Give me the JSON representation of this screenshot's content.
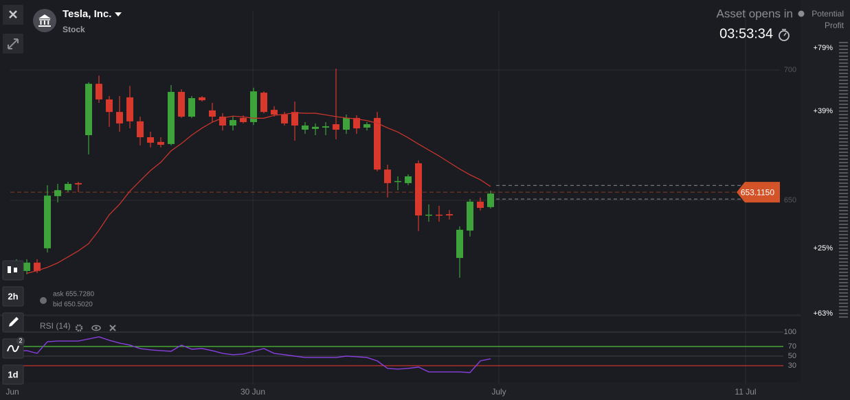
{
  "header": {
    "title": "Tesla, Inc.",
    "subtitle": "Stock"
  },
  "timer": {
    "label": "Asset opens in",
    "value": "03:53:34"
  },
  "profit": {
    "label": [
      "Potential",
      "Profit"
    ]
  },
  "toolbar": {
    "period": "2h",
    "indicator_count": "2",
    "timeframe": "1d"
  },
  "quote": {
    "ask": {
      "value": 655.728,
      "label": "ask 655.7280"
    },
    "bid": {
      "value": 650.502,
      "label": "bid 650.5020"
    }
  },
  "chart_data": {
    "type": "candlestick",
    "ylim": [
      606.3,
      722.9
    ],
    "yticks": [
      700,
      650
    ],
    "up_color": "#3da33a",
    "down_color": "#d8392c",
    "ma_color": "#c8342c",
    "x_labels": [
      "Jun",
      "30 Jun",
      "July",
      "11 Jul"
    ],
    "profit_labels": [
      "+79%",
      "+39%",
      "+25%",
      "+63%"
    ],
    "current": {
      "value": 653.115,
      "label": "653.1150"
    },
    "series": {
      "open": [
        622.9,
        622.9,
        626.1,
        631.6,
        651.6,
        653.9,
        656.6,
        675.0,
        694.7,
        688.7,
        683.9,
        689.5,
        680.3,
        674.2,
        672.4,
        671.6,
        691.6,
        682.1,
        689.5,
        684.5,
        682.1,
        678.7,
        681.6,
        680.0,
        691.3,
        684.7,
        682.9,
        683.9,
        677.1,
        677.4,
        677.9,
        679.2,
        677.1,
        681.6,
        677.9,
        681.6,
        661.8,
        657.1,
        656.6,
        664.2,
        644.2,
        644.5,
        644.7,
        627.9,
        638.4,
        649.5,
        647.4
      ],
      "high": [
        627.4,
        627.4,
        627.4,
        655.8,
        656.3,
        657.1,
        657.1,
        695.3,
        697.9,
        690.0,
        690.0,
        693.9,
        682.1,
        676.3,
        674.2,
        694.2,
        692.6,
        690.0,
        690.0,
        687.4,
        683.4,
        682.1,
        682.6,
        693.2,
        691.8,
        686.1,
        683.9,
        687.9,
        680.0,
        679.5,
        680.0,
        700.5,
        682.9,
        682.6,
        680.0,
        683.9,
        663.7,
        659.2,
        660.0,
        665.3,
        648.4,
        647.9,
        646.3,
        640.0,
        650.5,
        651.1,
        653.7
      ],
      "low": [
        621.6,
        621.6,
        622.1,
        630.0,
        649.2,
        653.2,
        653.2,
        667.6,
        687.4,
        678.2,
        676.3,
        677.6,
        671.1,
        670.3,
        670.3,
        671.1,
        681.6,
        681.6,
        687.9,
        680.0,
        676.8,
        676.8,
        679.5,
        678.9,
        683.4,
        682.1,
        678.7,
        672.9,
        675.5,
        675.0,
        675.0,
        673.4,
        675.5,
        675.5,
        676.8,
        661.1,
        651.1,
        653.9,
        655.8,
        638.2,
        641.8,
        641.8,
        642.6,
        620.3,
        636.1,
        646.1,
        646.8
      ],
      "close": [
        625.5,
        626.1,
        622.9,
        651.8,
        653.9,
        656.3,
        656.1,
        694.7,
        688.7,
        683.9,
        679.5,
        680.3,
        674.2,
        672.1,
        671.3,
        691.6,
        682.1,
        689.2,
        688.4,
        682.1,
        678.7,
        680.8,
        680.0,
        691.8,
        683.9,
        682.9,
        679.5,
        678.7,
        678.7,
        678.2,
        678.4,
        677.1,
        681.6,
        677.6,
        679.2,
        661.8,
        656.6,
        657.4,
        659.2,
        644.2,
        644.5,
        644.2,
        644.2,
        638.7,
        649.5,
        647.1,
        652.6
      ]
    },
    "ma": [
      null,
      622.0,
      623.0,
      624.3,
      626.0,
      628.3,
      630.6,
      633.4,
      638.5,
      644.5,
      648.5,
      653.5,
      657.5,
      661.4,
      664.6,
      669.0,
      671.8,
      675.0,
      677.7,
      680.0,
      681.6,
      682.3,
      682.0,
      681.5,
      681.5,
      682.6,
      683.0,
      683.6,
      683.4,
      683.4,
      682.8,
      682.1,
      681.6,
      681.2,
      680.6,
      679.6,
      677.8,
      676.2,
      674.0,
      671.6,
      669.3,
      667.0,
      664.5,
      662.0,
      659.8,
      657.9,
      655.3
    ],
    "rsi": {
      "title": "RSI (14)",
      "ylim": [
        0,
        100
      ],
      "yticks": [
        100,
        70,
        50,
        30
      ],
      "color": "#8a3fe0",
      "values": [
        60,
        61.4,
        55.7,
        80,
        81.4,
        81.4,
        81.4,
        85.7,
        90,
        82.9,
        77.1,
        72.9,
        65.7,
        62.9,
        61.4,
        60,
        72.9,
        64.3,
        65.7,
        61.4,
        55.7,
        52.9,
        54.3,
        60,
        65.7,
        55.7,
        52.9,
        50,
        47.1,
        47.1,
        47.1,
        47.1,
        50,
        48.6,
        47.1,
        40,
        24.3,
        22.9,
        24.3,
        27.1,
        17.1,
        17.1,
        17.1,
        17.1,
        15.7,
        40,
        44.3
      ]
    }
  }
}
